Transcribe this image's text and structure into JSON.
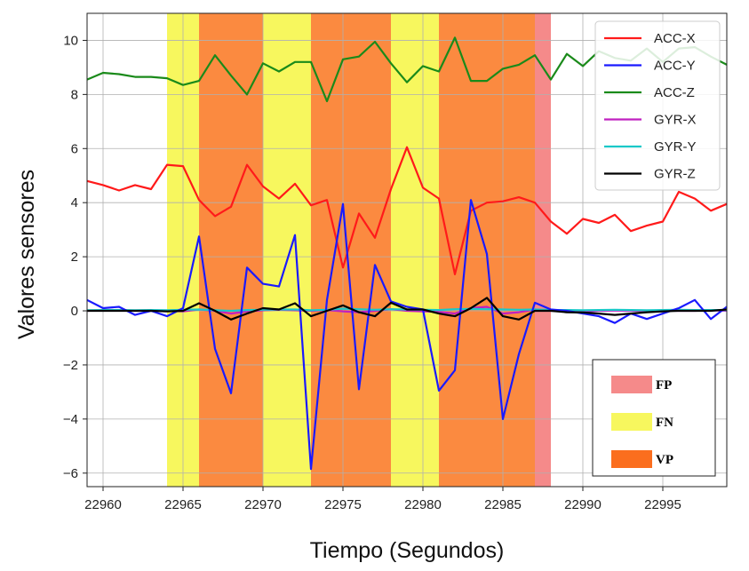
{
  "chart_data": {
    "type": "line",
    "xlabel": "Tiempo (Segundos)",
    "ylabel": "Valores sensores",
    "xlim": [
      22959,
      22999
    ],
    "ylim": [
      -6.5,
      11
    ],
    "xticks": [
      22960,
      22965,
      22970,
      22975,
      22980,
      22985,
      22990,
      22995
    ],
    "yticks": [
      -6,
      -4,
      -2,
      0,
      2,
      4,
      6,
      8,
      10
    ],
    "grid": true,
    "x": [
      22959,
      22960,
      22961,
      22962,
      22963,
      22964,
      22965,
      22966,
      22967,
      22968,
      22969,
      22970,
      22971,
      22972,
      22973,
      22974,
      22975,
      22976,
      22977,
      22978,
      22979,
      22980,
      22981,
      22982,
      22983,
      22984,
      22985,
      22986,
      22987,
      22988,
      22989,
      22990,
      22991,
      22992,
      22993,
      22994,
      22995,
      22996,
      22997,
      22998,
      22999
    ],
    "series": [
      {
        "name": "ACC-X",
        "color": "#ff1a1a",
        "values": [
          4.8,
          4.65,
          4.45,
          4.65,
          4.5,
          5.4,
          5.35,
          4.1,
          3.5,
          3.85,
          5.4,
          4.6,
          4.15,
          4.7,
          3.9,
          4.1,
          1.6,
          3.6,
          2.7,
          4.5,
          6.05,
          4.55,
          4.15,
          1.35,
          3.7,
          4.0,
          4.05,
          4.2,
          4.0,
          3.3,
          2.85,
          3.4,
          3.25,
          3.55,
          2.95,
          3.15,
          3.3,
          4.4,
          4.15,
          3.7,
          3.95
        ]
      },
      {
        "name": "ACC-Y",
        "color": "#1a1aff",
        "values": [
          0.4,
          0.1,
          0.15,
          -0.15,
          0.0,
          -0.2,
          0.1,
          2.75,
          -1.4,
          -3.05,
          1.6,
          1.0,
          0.9,
          2.8,
          -5.85,
          0.4,
          3.95,
          -2.9,
          1.7,
          0.35,
          0.15,
          0.05,
          -2.95,
          -2.2,
          4.1,
          2.1,
          -4.0,
          -1.6,
          0.3,
          0.05,
          0.0,
          -0.1,
          -0.2,
          -0.45,
          -0.1,
          -0.3,
          -0.1,
          0.1,
          0.4,
          -0.3,
          0.15
        ]
      },
      {
        "name": "ACC-Z",
        "color": "#1a8a1a",
        "values": [
          8.55,
          8.8,
          8.75,
          8.65,
          8.65,
          8.6,
          8.35,
          8.5,
          9.45,
          8.7,
          8.0,
          9.15,
          8.85,
          9.2,
          9.2,
          7.75,
          9.3,
          9.4,
          9.95,
          9.15,
          8.45,
          9.05,
          8.85,
          10.1,
          8.5,
          8.5,
          8.95,
          9.1,
          9.45,
          8.55,
          9.5,
          9.05,
          9.6,
          9.35,
          9.25,
          9.7,
          9.2,
          9.7,
          9.75,
          9.4,
          9.1
        ]
      },
      {
        "name": "GYR-X",
        "color": "#c020c0",
        "values": [
          0.0,
          0.02,
          0.03,
          0.0,
          0.01,
          0.0,
          -0.02,
          0.05,
          0.0,
          -0.1,
          -0.02,
          0.02,
          0.04,
          0.02,
          0.0,
          0.03,
          -0.02,
          -0.05,
          0.0,
          0.06,
          0.0,
          -0.02,
          -0.04,
          -0.1,
          0.1,
          0.15,
          -0.1,
          -0.05,
          0.05,
          0.0,
          0.0,
          -0.02,
          0.0,
          0.01,
          0.0,
          0.0,
          0.01,
          0.0,
          0.0,
          0.02,
          0.0
        ]
      },
      {
        "name": "GYR-Y",
        "color": "#1ac8c8",
        "values": [
          0.02,
          0.03,
          0.03,
          0.02,
          0.03,
          0.02,
          0.04,
          0.05,
          0.02,
          0.0,
          0.03,
          0.04,
          0.05,
          0.05,
          0.02,
          0.04,
          0.08,
          0.06,
          0.04,
          0.06,
          0.05,
          0.04,
          0.03,
          0.06,
          0.07,
          0.06,
          0.05,
          0.04,
          0.05,
          0.03,
          0.03,
          0.02,
          0.03,
          0.04,
          0.03,
          0.02,
          0.03,
          0.04,
          0.03,
          0.03,
          0.03
        ]
      },
      {
        "name": "GYR-Z",
        "color": "#000000",
        "values": [
          0.0,
          0.0,
          0.0,
          0.0,
          0.0,
          -0.02,
          0.0,
          0.28,
          0.0,
          -0.32,
          -0.1,
          0.1,
          0.05,
          0.28,
          -0.2,
          0.0,
          0.2,
          -0.05,
          -0.2,
          0.3,
          0.05,
          0.05,
          -0.1,
          -0.2,
          0.1,
          0.48,
          -0.2,
          -0.32,
          0.0,
          0.0,
          -0.05,
          -0.06,
          -0.1,
          -0.15,
          -0.1,
          -0.05,
          -0.02,
          0.0,
          0.0,
          0.0,
          0.05
        ]
      }
    ],
    "regions": [
      {
        "label": "FN",
        "from": 22964,
        "to": 22966
      },
      {
        "label": "VP",
        "from": 22966,
        "to": 22970
      },
      {
        "label": "FN",
        "from": 22970,
        "to": 22973
      },
      {
        "label": "VP",
        "from": 22973,
        "to": 22978
      },
      {
        "label": "FN",
        "from": 22978,
        "to": 22981
      },
      {
        "label": "VP",
        "from": 22981,
        "to": 22987
      },
      {
        "label": "FP",
        "from": 22987,
        "to": 22988
      }
    ],
    "region_colors": {
      "FP": "#f58a8a",
      "FN": "#f7f75e",
      "VP": "#fb8a40"
    },
    "legend_lines_position": "top-right",
    "legend_regions": [
      "FP",
      "FN",
      "VP"
    ],
    "legend_regions_colors": [
      "#f58a8a",
      "#f7f75e",
      "#fb6e1e"
    ],
    "legend_regions_position": "bottom-right"
  }
}
